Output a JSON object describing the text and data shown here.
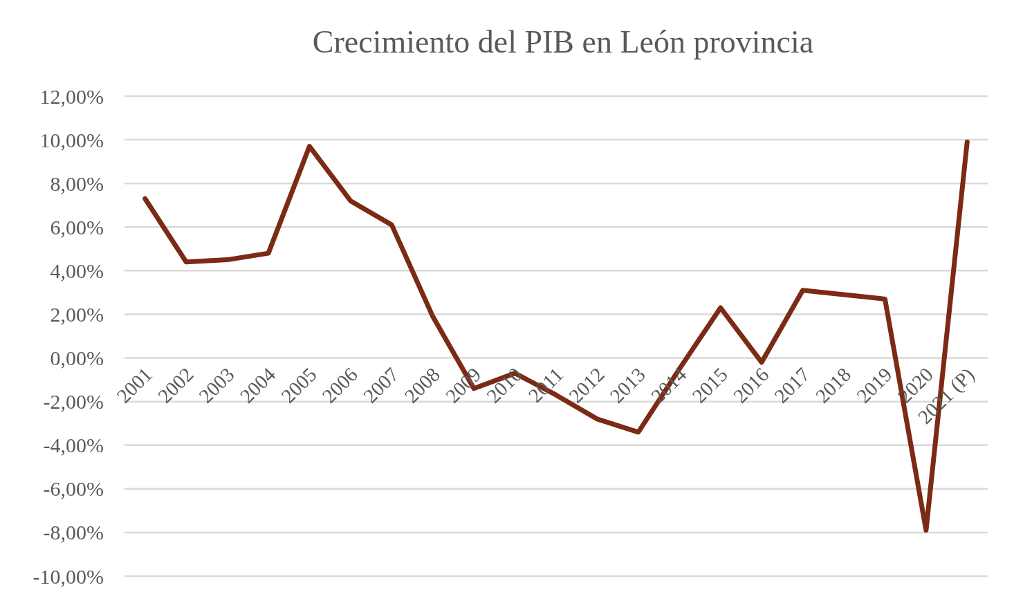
{
  "chart_data": {
    "type": "line",
    "title": "Crecimiento del PIB en León provincia",
    "categories": [
      "2001",
      "2002",
      "2003",
      "2004",
      "2005",
      "2006",
      "2007",
      "2008",
      "2009",
      "2010",
      "2011",
      "2012",
      "2013",
      "2014",
      "2015",
      "2016",
      "2017",
      "2018",
      "2019",
      "2020",
      "2021 (P)"
    ],
    "series": [
      {
        "color": "#7b2a14",
        "values": [
          7.3,
          4.4,
          4.5,
          4.8,
          9.7,
          7.2,
          6.1,
          1.9,
          -1.4,
          -0.7,
          -1.7,
          -2.8,
          -3.4,
          -0.5,
          2.3,
          -0.2,
          3.1,
          2.9,
          2.7,
          -7.9,
          9.9
        ]
      }
    ],
    "ylim": [
      -10,
      12
    ],
    "yticks": [
      {
        "value": -10,
        "label": "-10,00%"
      },
      {
        "value": -8,
        "label": "-8,00%"
      },
      {
        "value": -6,
        "label": "-6,00%"
      },
      {
        "value": -4,
        "label": "-4,00%"
      },
      {
        "value": -2,
        "label": "-2,00%"
      },
      {
        "value": 0,
        "label": "0,00%"
      },
      {
        "value": 2,
        "label": "2,00%"
      },
      {
        "value": 4,
        "label": "4,00%"
      },
      {
        "value": 6,
        "label": "6,00%"
      },
      {
        "value": 8,
        "label": "8,00%"
      },
      {
        "value": 10,
        "label": "10,00%"
      },
      {
        "value": 12,
        "label": "12,00%"
      }
    ],
    "grid": "y",
    "marker": "none",
    "line_style": "solid"
  }
}
